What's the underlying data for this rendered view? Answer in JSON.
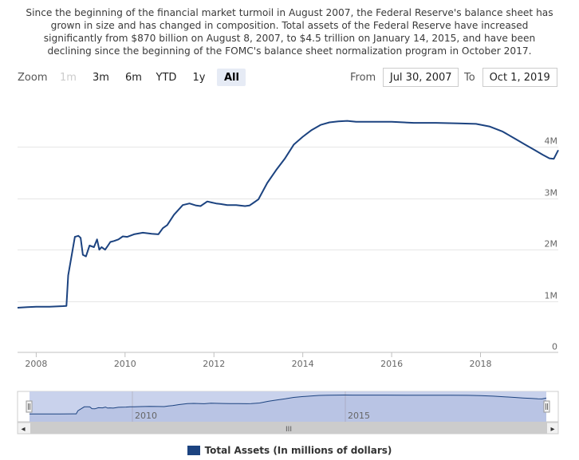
{
  "caption": {
    "lines": [
      "Since the beginning of the financial market turmoil in August 2007, the Federal Reserve's balance sheet has",
      "grown in size and has changed in composition. Total assets of the Federal Reserve have increased",
      "significantly from $870 billion on August 8, 2007, to $4.5 trillion on January 14, 2015, and have been",
      "declining since the beginning of the FOMC's balance sheet normalization program in October 2017."
    ]
  },
  "zoom": {
    "label": "Zoom",
    "buttons": [
      {
        "label": "1m",
        "state": "disabled"
      },
      {
        "label": "3m",
        "state": "normal"
      },
      {
        "label": "6m",
        "state": "normal"
      },
      {
        "label": "YTD",
        "state": "normal"
      },
      {
        "label": "1y",
        "state": "normal"
      },
      {
        "label": "All",
        "state": "active"
      }
    ]
  },
  "range": {
    "from_label": "From",
    "from_value": "Jul 30, 2007",
    "to_label": "To",
    "to_value": "Oct 1, 2019"
  },
  "navigator": {
    "year_labels": [
      "2010",
      "2015"
    ],
    "scroll_thumb": "III",
    "left_arrow": "◂",
    "right_arrow": "▸"
  },
  "colors": {
    "series": "#1c4380",
    "navigator_fill": "#c9d2ec",
    "grid": "#e6e6e6"
  },
  "chart_data": {
    "type": "line",
    "title": "",
    "xlabel": "",
    "ylabel": "",
    "x_range": [
      2007.58,
      2019.75
    ],
    "ylim": [
      0,
      4000000
    ],
    "y_ticks": [
      {
        "value": 0,
        "label": "0"
      },
      {
        "value": 1000000,
        "label": "1M"
      },
      {
        "value": 2000000,
        "label": "2M"
      },
      {
        "value": 3000000,
        "label": "3M"
      },
      {
        "value": 4000000,
        "label": "4M"
      }
    ],
    "x_ticks": [
      {
        "value": 2008,
        "label": "2008"
      },
      {
        "value": 2010,
        "label": "2010"
      },
      {
        "value": 2012,
        "label": "2012"
      },
      {
        "value": 2014,
        "label": "2014"
      },
      {
        "value": 2016,
        "label": "2016"
      },
      {
        "value": 2018,
        "label": "2018"
      }
    ],
    "grid": true,
    "legend_position": "bottom-center",
    "series": [
      {
        "name": "Total Assets (In millions of dollars)",
        "x": [
          2007.58,
          2007.8,
          2008.0,
          2008.3,
          2008.6,
          2008.68,
          2008.72,
          2008.8,
          2008.87,
          2008.95,
          2009.0,
          2009.05,
          2009.12,
          2009.2,
          2009.3,
          2009.37,
          2009.42,
          2009.47,
          2009.55,
          2009.6,
          2009.67,
          2009.75,
          2009.85,
          2009.95,
          2010.05,
          2010.2,
          2010.4,
          2010.6,
          2010.75,
          2010.85,
          2010.95,
          2011.1,
          2011.3,
          2011.45,
          2011.6,
          2011.7,
          2011.85,
          2011.95,
          2012.05,
          2012.15,
          2012.3,
          2012.5,
          2012.7,
          2012.8,
          2012.9,
          2013.0,
          2013.2,
          2013.4,
          2013.6,
          2013.8,
          2014.0,
          2014.2,
          2014.4,
          2014.6,
          2014.8,
          2015.0,
          2015.2,
          2015.5,
          2016.0,
          2016.5,
          2017.0,
          2017.5,
          2017.9,
          2018.2,
          2018.5,
          2018.8,
          2019.0,
          2019.2,
          2019.4,
          2019.55,
          2019.65,
          2019.75
        ],
        "y": [
          870000,
          880000,
          890000,
          890000,
          900000,
          905000,
          1500000,
          1900000,
          2250000,
          2270000,
          2230000,
          1900000,
          1870000,
          2080000,
          2050000,
          2200000,
          2000000,
          2050000,
          2000000,
          2060000,
          2150000,
          2170000,
          2200000,
          2260000,
          2250000,
          2300000,
          2330000,
          2310000,
          2300000,
          2420000,
          2480000,
          2680000,
          2870000,
          2900000,
          2860000,
          2850000,
          2940000,
          2920000,
          2900000,
          2890000,
          2870000,
          2870000,
          2850000,
          2860000,
          2920000,
          2980000,
          3300000,
          3550000,
          3780000,
          4050000,
          4200000,
          4330000,
          4430000,
          4480000,
          4500000,
          4510000,
          4490000,
          4490000,
          4490000,
          4470000,
          4470000,
          4460000,
          4450000,
          4400000,
          4300000,
          4150000,
          4050000,
          3950000,
          3850000,
          3780000,
          3770000,
          3940000
        ]
      }
    ]
  }
}
